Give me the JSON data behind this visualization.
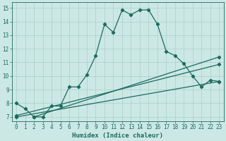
{
  "xlabel": "Humidex (Indice chaleur)",
  "bg_color": "#cce8e4",
  "grid_color": "#aacfcb",
  "line_color": "#1a6b5e",
  "xlim": [
    -0.5,
    23.5
  ],
  "ylim": [
    6.7,
    15.4
  ],
  "yticks": [
    7,
    8,
    9,
    10,
    11,
    12,
    13,
    14,
    15
  ],
  "xticks": [
    0,
    1,
    2,
    3,
    4,
    5,
    6,
    7,
    8,
    9,
    10,
    11,
    12,
    13,
    14,
    15,
    16,
    17,
    18,
    19,
    20,
    21,
    22,
    23
  ],
  "line1_x": [
    0,
    1,
    2,
    3,
    4,
    5,
    6,
    7,
    8,
    9,
    10,
    11,
    12,
    13,
    14,
    15,
    16,
    17,
    18,
    19,
    20,
    21,
    22,
    23
  ],
  "line1_y": [
    8.0,
    7.6,
    7.0,
    7.0,
    7.8,
    7.8,
    9.2,
    9.2,
    10.1,
    11.5,
    13.8,
    13.2,
    14.85,
    14.5,
    14.85,
    14.85,
    13.8,
    11.8,
    11.5,
    10.9,
    10.0,
    9.2,
    9.7,
    9.6
  ],
  "line2_x": [
    0,
    23
  ],
  "line2_y": [
    7.0,
    9.6
  ],
  "line3_x": [
    0,
    23
  ],
  "line3_y": [
    7.1,
    10.85
  ],
  "line4_x": [
    2,
    23
  ],
  "line4_y": [
    7.0,
    11.4
  ],
  "marker": "D",
  "markersize": 2.2,
  "linewidth": 0.9,
  "tick_fontsize": 5.5,
  "xlabel_fontsize": 6.5
}
